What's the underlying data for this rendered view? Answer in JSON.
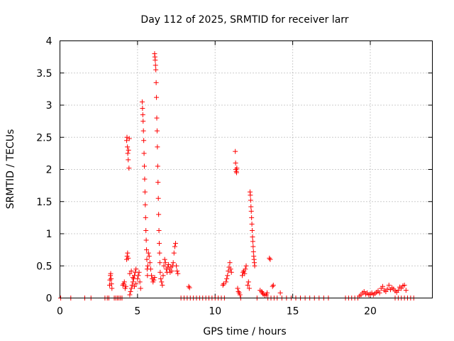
{
  "chart_data": {
    "type": "scatter",
    "title": "Day 112 of 2025, SRMTID for receiver larr",
    "xlabel": "GPS time / hours",
    "ylabel": "SRMTID / TECUs",
    "xlim": [
      0,
      24
    ],
    "ylim": [
      0,
      4
    ],
    "xticks": [
      0,
      5,
      10,
      15,
      20
    ],
    "xtick_labels": [
      "0",
      "5",
      "10",
      "15",
      "20"
    ],
    "yticks": [
      0,
      0.5,
      1,
      1.5,
      2,
      2.5,
      3,
      3.5,
      4
    ],
    "ytick_labels": [
      "0",
      "0.5",
      "1",
      "1.5",
      "2",
      "2.5",
      "3",
      "3.5",
      "4"
    ],
    "grid": true,
    "marker": "+",
    "series": [
      {
        "name": "SRMTID",
        "color": "#ff0000",
        "points": [
          [
            0.05,
            0
          ],
          [
            0.7,
            0
          ],
          [
            1.6,
            0
          ],
          [
            2.0,
            0
          ],
          [
            2.9,
            0
          ],
          [
            3.05,
            0
          ],
          [
            3.15,
            0
          ],
          [
            3.2,
            0.2
          ],
          [
            3.22,
            0.28
          ],
          [
            3.25,
            0.35
          ],
          [
            3.27,
            0.38
          ],
          [
            3.3,
            0.3
          ],
          [
            3.32,
            0.22
          ],
          [
            3.35,
            0.15
          ],
          [
            3.5,
            0
          ],
          [
            3.6,
            0
          ],
          [
            3.7,
            0
          ],
          [
            3.8,
            0
          ],
          [
            3.9,
            0
          ],
          [
            4.0,
            0
          ],
          [
            4.05,
            0.2
          ],
          [
            4.1,
            0.22
          ],
          [
            4.15,
            0.25
          ],
          [
            4.2,
            0.15
          ],
          [
            4.25,
            0.18
          ],
          [
            4.3,
            2.45
          ],
          [
            4.32,
            2.5
          ],
          [
            4.35,
            2.35
          ],
          [
            4.37,
            2.25
          ],
          [
            4.4,
            2.15
          ],
          [
            4.42,
            2.3
          ],
          [
            4.45,
            2.02
          ],
          [
            4.47,
            2.48
          ],
          [
            4.3,
            0.6
          ],
          [
            4.33,
            0.65
          ],
          [
            4.36,
            0.7
          ],
          [
            4.4,
            0.62
          ],
          [
            4.5,
            0.05
          ],
          [
            4.55,
            0.1
          ],
          [
            4.6,
            0.15
          ],
          [
            4.65,
            0.2
          ],
          [
            4.7,
            0.25
          ],
          [
            4.75,
            0.3
          ],
          [
            4.8,
            0.35
          ],
          [
            4.85,
            0.4
          ],
          [
            4.9,
            0.45
          ],
          [
            4.5,
            0.38
          ],
          [
            4.6,
            0.42
          ],
          [
            4.7,
            0.32
          ],
          [
            4.8,
            0.18
          ],
          [
            4.9,
            0.22
          ],
          [
            5.0,
            0.3
          ],
          [
            5.05,
            0.35
          ],
          [
            5.1,
            0.4
          ],
          [
            5.15,
            0.25
          ],
          [
            5.2,
            0.15
          ],
          [
            5.3,
            3.05
          ],
          [
            5.32,
            2.95
          ],
          [
            5.34,
            2.85
          ],
          [
            5.36,
            2.75
          ],
          [
            5.38,
            2.6
          ],
          [
            5.4,
            2.45
          ],
          [
            5.42,
            2.25
          ],
          [
            5.44,
            2.05
          ],
          [
            5.46,
            1.85
          ],
          [
            5.48,
            1.65
          ],
          [
            5.5,
            1.45
          ],
          [
            5.52,
            1.25
          ],
          [
            5.54,
            1.05
          ],
          [
            5.56,
            0.9
          ],
          [
            5.58,
            0.75
          ],
          [
            5.6,
            0.6
          ],
          [
            5.62,
            0.45
          ],
          [
            5.64,
            0.35
          ],
          [
            5.66,
            0.5
          ],
          [
            5.7,
            0.7
          ],
          [
            5.75,
            0.65
          ],
          [
            5.8,
            0.55
          ],
          [
            5.85,
            0.45
          ],
          [
            5.9,
            0.35
          ],
          [
            5.95,
            0.3
          ],
          [
            6.0,
            0.25
          ],
          [
            6.05,
            0.28
          ],
          [
            6.1,
            0.32
          ],
          [
            6.1,
            3.8
          ],
          [
            6.12,
            3.75
          ],
          [
            6.14,
            3.7
          ],
          [
            6.16,
            3.62
          ],
          [
            6.18,
            3.55
          ],
          [
            6.2,
            3.35
          ],
          [
            6.22,
            3.12
          ],
          [
            6.24,
            2.8
          ],
          [
            6.26,
            2.6
          ],
          [
            6.28,
            2.35
          ],
          [
            6.3,
            2.05
          ],
          [
            6.32,
            1.8
          ],
          [
            6.34,
            1.55
          ],
          [
            6.36,
            1.3
          ],
          [
            6.38,
            1.05
          ],
          [
            6.4,
            0.85
          ],
          [
            6.42,
            0.7
          ],
          [
            6.44,
            0.55
          ],
          [
            6.46,
            0.4
          ],
          [
            6.5,
            0.3
          ],
          [
            6.55,
            0.25
          ],
          [
            6.6,
            0.2
          ],
          [
            6.65,
            0.35
          ],
          [
            6.7,
            0.5
          ],
          [
            6.75,
            0.6
          ],
          [
            6.8,
            0.55
          ],
          [
            6.85,
            0.45
          ],
          [
            6.9,
            0.4
          ],
          [
            6.95,
            0.48
          ],
          [
            7.0,
            0.52
          ],
          [
            7.05,
            0.45
          ],
          [
            7.1,
            0.4
          ],
          [
            7.15,
            0.48
          ],
          [
            7.2,
            0.42
          ],
          [
            7.25,
            0.5
          ],
          [
            7.3,
            0.55
          ],
          [
            7.35,
            0.7
          ],
          [
            7.4,
            0.8
          ],
          [
            7.45,
            0.85
          ],
          [
            7.5,
            0.5
          ],
          [
            7.55,
            0.42
          ],
          [
            7.6,
            0.38
          ],
          [
            7.8,
            0
          ],
          [
            8.0,
            0
          ],
          [
            8.2,
            0
          ],
          [
            8.3,
            0.18
          ],
          [
            8.35,
            0.16
          ],
          [
            8.4,
            0
          ],
          [
            8.6,
            0
          ],
          [
            8.8,
            0
          ],
          [
            9.0,
            0
          ],
          [
            9.2,
            0
          ],
          [
            9.4,
            0
          ],
          [
            9.6,
            0
          ],
          [
            9.8,
            0
          ],
          [
            10.0,
            0
          ],
          [
            10.2,
            0
          ],
          [
            10.4,
            0
          ],
          [
            10.5,
            0.2
          ],
          [
            10.55,
            0.22
          ],
          [
            10.6,
            0
          ],
          [
            10.7,
            0.25
          ],
          [
            10.75,
            0.3
          ],
          [
            10.8,
            0.35
          ],
          [
            10.85,
            0.42
          ],
          [
            10.9,
            0.48
          ],
          [
            10.95,
            0.55
          ],
          [
            11.0,
            0.45
          ],
          [
            11.05,
            0.4
          ],
          [
            11.3,
            2.28
          ],
          [
            11.32,
            2.1
          ],
          [
            11.34,
            2.0
          ],
          [
            11.36,
            1.97
          ],
          [
            11.38,
            1.95
          ],
          [
            11.4,
            2.02
          ],
          [
            11.45,
            0.15
          ],
          [
            11.5,
            0.1
          ],
          [
            11.55,
            0.08
          ],
          [
            11.6,
            0.05
          ],
          [
            11.65,
            0
          ],
          [
            11.75,
            0.35
          ],
          [
            11.8,
            0.4
          ],
          [
            11.85,
            0.42
          ],
          [
            11.9,
            0.38
          ],
          [
            11.95,
            0.45
          ],
          [
            12.0,
            0.5
          ],
          [
            12.1,
            0.2
          ],
          [
            12.15,
            0.25
          ],
          [
            12.2,
            0.15
          ],
          [
            12.25,
            1.65
          ],
          [
            12.27,
            1.6
          ],
          [
            12.29,
            1.52
          ],
          [
            12.31,
            1.42
          ],
          [
            12.33,
            1.35
          ],
          [
            12.35,
            1.25
          ],
          [
            12.37,
            1.15
          ],
          [
            12.39,
            1.05
          ],
          [
            12.41,
            0.95
          ],
          [
            12.43,
            0.88
          ],
          [
            12.45,
            0.8
          ],
          [
            12.47,
            0.72
          ],
          [
            12.49,
            0.65
          ],
          [
            12.51,
            0.6
          ],
          [
            12.53,
            0.55
          ],
          [
            12.55,
            0.5
          ],
          [
            12.7,
            0
          ],
          [
            12.9,
            0.12
          ],
          [
            13.0,
            0.1
          ],
          [
            13.05,
            0.08
          ],
          [
            13.1,
            0.06
          ],
          [
            13.2,
            0.04
          ],
          [
            13.3,
            0.05
          ],
          [
            13.35,
            0.08
          ],
          [
            13.5,
            0.62
          ],
          [
            13.55,
            0.6
          ],
          [
            13.7,
            0.18
          ],
          [
            13.75,
            0.2
          ],
          [
            14.2,
            0.08
          ],
          [
            13.4,
            0
          ],
          [
            13.6,
            0
          ],
          [
            13.8,
            0
          ],
          [
            14.0,
            0
          ],
          [
            14.3,
            0
          ],
          [
            14.6,
            0
          ],
          [
            14.9,
            0
          ],
          [
            15.2,
            0
          ],
          [
            15.5,
            0
          ],
          [
            15.8,
            0
          ],
          [
            16.1,
            0
          ],
          [
            16.4,
            0
          ],
          [
            16.7,
            0
          ],
          [
            17.0,
            0
          ],
          [
            17.3,
            0
          ],
          [
            18.4,
            0
          ],
          [
            18.6,
            0
          ],
          [
            18.8,
            0
          ],
          [
            19.0,
            0
          ],
          [
            19.2,
            0
          ],
          [
            19.3,
            0.03
          ],
          [
            19.4,
            0.05
          ],
          [
            19.5,
            0.08
          ],
          [
            19.6,
            0.1
          ],
          [
            19.7,
            0.06
          ],
          [
            19.8,
            0.08
          ],
          [
            19.9,
            0.05
          ],
          [
            20.0,
            0.06
          ],
          [
            20.1,
            0.08
          ],
          [
            20.2,
            0.05
          ],
          [
            20.3,
            0.07
          ],
          [
            20.4,
            0.09
          ],
          [
            20.5,
            0.11
          ],
          [
            20.6,
            0.08
          ],
          [
            20.7,
            0.15
          ],
          [
            20.8,
            0.18
          ],
          [
            20.9,
            0.12
          ],
          [
            21.0,
            0.1
          ],
          [
            21.1,
            0.14
          ],
          [
            21.2,
            0.2
          ],
          [
            21.3,
            0.13
          ],
          [
            21.4,
            0.16
          ],
          [
            21.5,
            0.14
          ],
          [
            21.6,
            0.11
          ],
          [
            21.7,
            0.09
          ],
          [
            21.8,
            0.12
          ],
          [
            21.9,
            0.17
          ],
          [
            22.0,
            0.15
          ],
          [
            22.1,
            0.19
          ],
          [
            22.2,
            0.2
          ],
          [
            22.3,
            0.12
          ],
          [
            21.6,
            0
          ],
          [
            21.8,
            0
          ],
          [
            22.0,
            0
          ],
          [
            22.2,
            0
          ],
          [
            22.4,
            0
          ],
          [
            22.6,
            0
          ],
          [
            22.8,
            0
          ]
        ]
      }
    ]
  }
}
